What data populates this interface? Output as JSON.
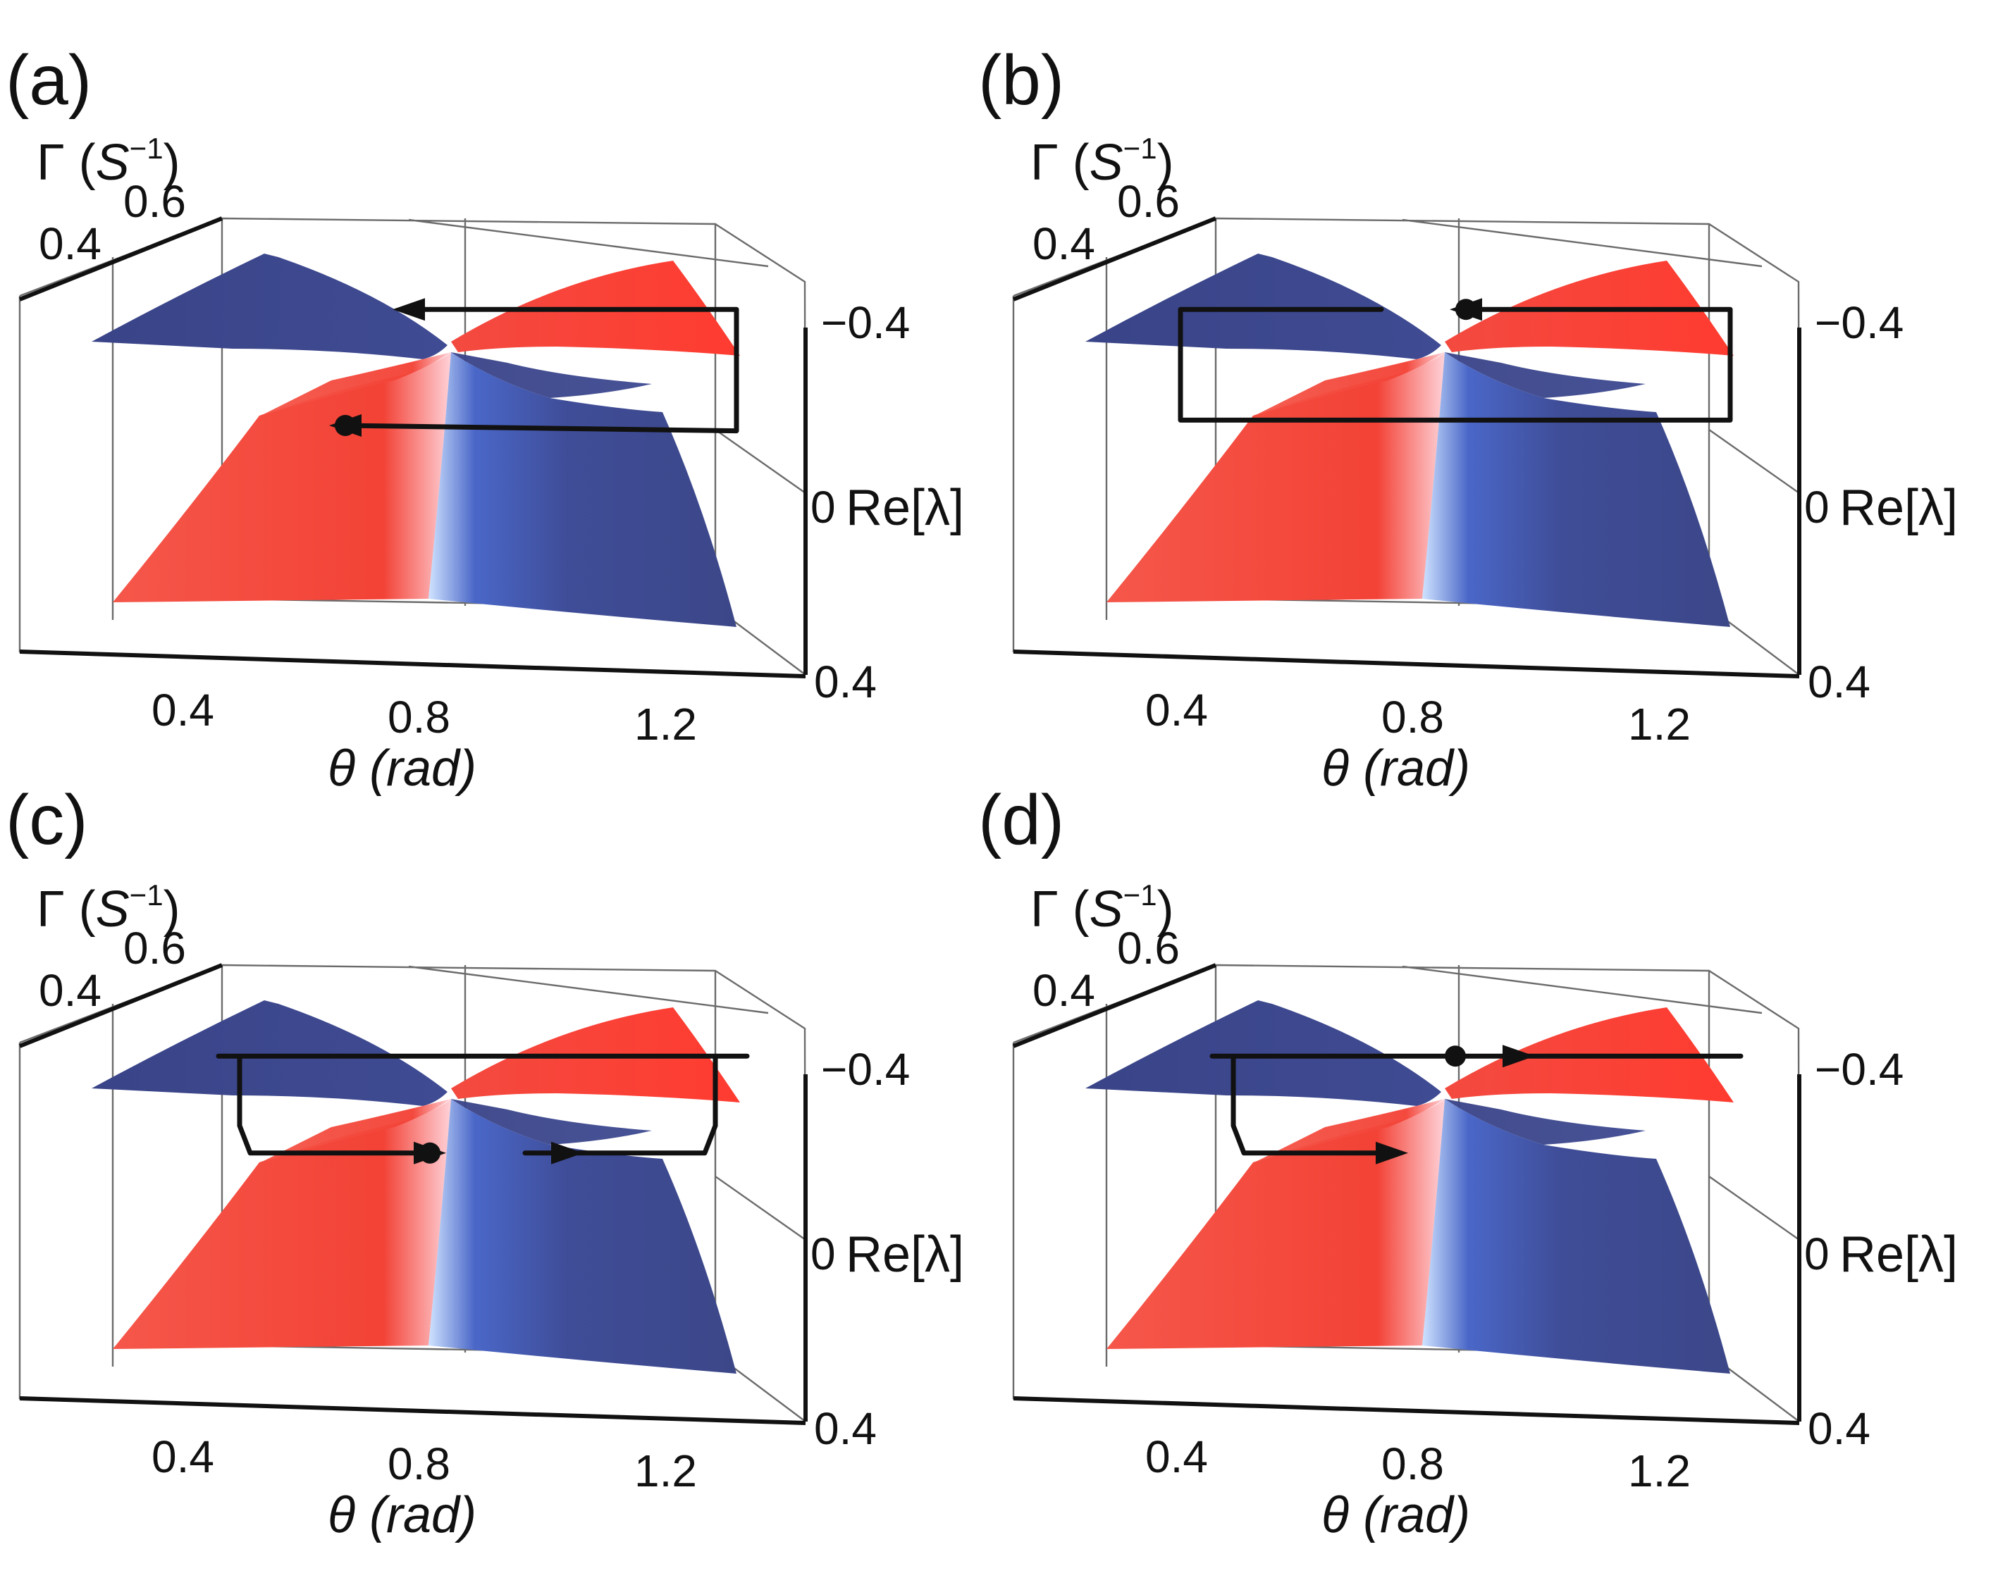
{
  "figure": {
    "colors": {
      "red_surface": "#f0443a",
      "blue_surface": "#3e4a92",
      "path": "#111111",
      "box": "#6b6b6b"
    }
  },
  "chart_data": [
    {
      "panel": "(a)",
      "type": "surface3d",
      "xlabel": "θ (rad)",
      "ylabel_main": "Γ (",
      "ylabel_var": "S",
      "ylabel_sup": "−1",
      "ylabel_close": ")",
      "zlabel": "Re[λ]",
      "xlim": [
        0.2,
        1.4
      ],
      "x_ticks": [
        "0.4",
        "0.8",
        "1.2"
      ],
      "y_ticks": [
        "0.4",
        "0.6"
      ],
      "z_ticks": [
        "−0.4",
        "0",
        "0.4"
      ],
      "surfaces": [
        "two sheets of Re[λ] meeting at the exceptional point, θ ≈ 0.8 rad"
      ],
      "trajectory": "one loop on the lower sheet ending at the marked point",
      "paths": [
        {
          "points": [
            [
              -0.5,
              0.35,
              0.16
            ],
            [
              1.35,
              0.35,
              0.18
            ],
            [
              1.35,
              0.62,
              0.16
            ],
            [
              1.35,
              0.62,
              -0.16
            ],
            [
              -0.2,
              0.62,
              -0.16
            ]
          ],
          "arrows": [
            [
              -0.2,
              0.62,
              -0.16,
              -1
            ],
            [
              -0.5,
              0.35,
              0.16,
              -1
            ]
          ],
          "dot": [
            -0.5,
            0.35,
            0.16
          ]
        }
      ]
    },
    {
      "panel": "(b)",
      "type": "surface3d",
      "xlabel": "θ (rad)",
      "ylabel_main": "Γ (",
      "ylabel_var": "S",
      "ylabel_sup": "−1",
      "ylabel_close": ")",
      "zlabel": "Re[λ]",
      "xlim": [
        0.2,
        1.4
      ],
      "x_ticks": [
        "0.4",
        "0.8",
        "1.2"
      ],
      "y_ticks": [
        "0.4",
        "0.6"
      ],
      "z_ticks": [
        "−0.4",
        "0",
        "0.4"
      ],
      "surfaces": [
        "two sheets of Re[λ] meeting at the exceptional point, θ ≈ 0.8 rad"
      ],
      "trajectory": "closed loop through both sheets, end point at the exceptional point",
      "paths": [
        {
          "points": [
            [
              -0.3,
              0.62,
              -0.16
            ],
            [
              -1.25,
              0.62,
              -0.16
            ],
            [
              -1.25,
              0.62,
              0.12
            ],
            [
              -1.25,
              0.35,
              0.14
            ],
            [
              1.35,
              0.35,
              0.14
            ],
            [
              1.35,
              0.62,
              0.12
            ],
            [
              1.35,
              0.62,
              -0.16
            ],
            [
              0.1,
              0.62,
              -0.16
            ]
          ],
          "arrows": [
            [
              0.1,
              0.62,
              -0.16,
              -1
            ]
          ],
          "dot": [
            0.1,
            0.62,
            -0.16
          ]
        }
      ]
    },
    {
      "panel": "(c)",
      "type": "surface3d",
      "xlabel": "θ (rad)",
      "ylabel_main": "Γ (",
      "ylabel_var": "S",
      "ylabel_sup": "−1",
      "ylabel_close": ")",
      "zlabel": "Re[λ]",
      "xlim": [
        0.2,
        1.4
      ],
      "x_ticks": [
        "0.4",
        "0.8",
        "1.2"
      ],
      "y_ticks": [
        "0.4",
        "0.6"
      ],
      "z_ticks": [
        "−0.4",
        "0",
        "0.4"
      ],
      "surfaces": [
        "two sheets of Re[λ] meeting at the exceptional point, θ ≈ 0.8 rad"
      ],
      "trajectory": "path starting on the upper sheet, descending to the lower sheet on both sides",
      "paths": [
        {
          "points": [
            [
              -1.1,
              0.62,
              -0.16
            ],
            [
              1.4,
              0.62,
              -0.16
            ]
          ],
          "arrows": [],
          "dot": null
        },
        {
          "points": [
            [
              -1.0,
              0.62,
              -0.16
            ],
            [
              -1.0,
              0.62,
              0.1
            ],
            [
              -0.95,
              0.52,
              0.16
            ],
            [
              -0.1,
              0.52,
              0.16
            ]
          ],
          "arrows": [
            [
              -0.1,
              0.52,
              0.16,
              1
            ]
          ],
          "dot": [
            -0.1,
            0.52,
            0.16
          ]
        },
        {
          "points": [
            [
              1.25,
              0.62,
              -0.16
            ],
            [
              1.25,
              0.62,
              0.1
            ],
            [
              1.2,
              0.52,
              0.16
            ],
            [
              0.35,
              0.52,
              0.16
            ]
          ],
          "arrows": [
            [
              0.55,
              0.52,
              0.16,
              1
            ]
          ],
          "dot": null
        }
      ]
    },
    {
      "panel": "(d)",
      "type": "surface3d",
      "xlabel": "θ (rad)",
      "ylabel_main": "Γ (",
      "ylabel_var": "S",
      "ylabel_sup": "−1",
      "ylabel_close": ")",
      "zlabel": "Re[λ]",
      "xlim": [
        0.2,
        1.4
      ],
      "x_ticks": [
        "0.4",
        "0.8",
        "1.2"
      ],
      "y_ticks": [
        "0.4",
        "0.6"
      ],
      "z_ticks": [
        "−0.4",
        "0",
        "0.4"
      ],
      "surfaces": [
        "two sheets of Re[λ] meeting at the exceptional point, θ ≈ 0.8 rad"
      ],
      "trajectory": "path on the upper sheet through the exceptional point, one branch descending to the lower sheet",
      "paths": [
        {
          "points": [
            [
              -1.1,
              0.62,
              -0.16
            ],
            [
              1.4,
              0.62,
              -0.16
            ]
          ],
          "arrows": [
            [
              0.35,
              0.62,
              -0.16,
              1
            ]
          ],
          "dot": [
            0.05,
            0.62,
            -0.16
          ]
        },
        {
          "points": [
            [
              -1.0,
              0.62,
              -0.16
            ],
            [
              -1.0,
              0.62,
              0.1
            ],
            [
              -0.95,
              0.52,
              0.16
            ],
            [
              -0.25,
              0.52,
              0.16
            ]
          ],
          "arrows": [
            [
              -0.25,
              0.52,
              0.16,
              1
            ]
          ],
          "dot": null
        }
      ]
    }
  ]
}
